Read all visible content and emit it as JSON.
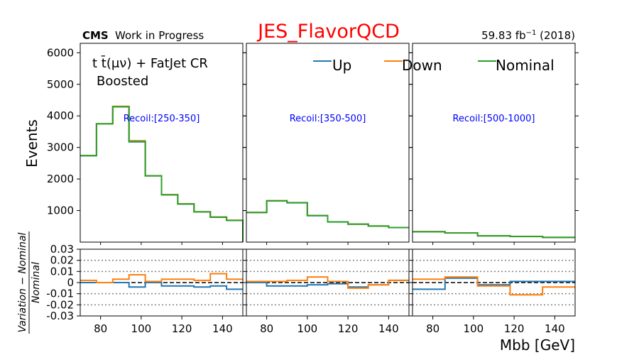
{
  "header": {
    "cms": "CMS",
    "wip": "Work in Progress",
    "title": "JES_FlavorQCD",
    "lumi_value": "59.83 fb",
    "lumi_exp": "−1",
    "lumi_year": " (2018)"
  },
  "annotation": {
    "region_line1": "t t̄(μν) + FatJet CR",
    "region_line2": "Boosted"
  },
  "axes": {
    "xlabel": "Mbb [GeV]",
    "ylabel_top": "Events",
    "ylabel_bottom_num": "Variation − Nominal",
    "ylabel_bottom_den": "Nominal"
  },
  "colors": {
    "up": "#1f77b4",
    "down": "#ff7f0e",
    "nominal": "#2ca02c",
    "title": "#ff0000",
    "recoil": "#0000ff"
  },
  "chart_data": {
    "type": "line",
    "legend": {
      "placement": "top",
      "entries": [
        "Up",
        "Down",
        "Nominal"
      ]
    },
    "top_ylim": [
      0,
      6300
    ],
    "top_yticks": [
      1000,
      2000,
      3000,
      4000,
      5000,
      6000
    ],
    "ratio_ylim": [
      -0.03,
      0.03
    ],
    "ratio_yticks": [
      0.03,
      0.02,
      0.01,
      0,
      -0.01,
      -0.02,
      -0.03
    ],
    "ratio_yticklabels": [
      "0.03",
      "0.02",
      "0.01",
      "0",
      "-0.01",
      "-0.02",
      "-0.03"
    ],
    "xlim": [
      70,
      150
    ],
    "xticks": [
      80,
      100,
      120,
      140
    ],
    "panels": [
      {
        "recoil": "Recoil:[250-350]",
        "edges": [
          70,
          78,
          86,
          94,
          102,
          110,
          118,
          126,
          134,
          142,
          150
        ],
        "nominal": [
          2740,
          3750,
          4290,
          3190,
          2100,
          1500,
          1210,
          960,
          790,
          690
        ],
        "up_var": [
          0.0,
          0.0,
          0.0,
          -0.004,
          0.0,
          -0.003,
          -0.003,
          -0.004,
          -0.003,
          -0.006
        ],
        "down_var": [
          0.002,
          0.0,
          0.003,
          0.007,
          0.001,
          0.003,
          0.003,
          0.002,
          0.008,
          0.003
        ]
      },
      {
        "recoil": "Recoil:[350-500]",
        "edges": [
          70,
          80,
          90,
          100,
          110,
          120,
          130,
          140,
          150
        ],
        "nominal": [
          940,
          1310,
          1250,
          840,
          640,
          570,
          510,
          460
        ],
        "up_var": [
          0.0,
          -0.003,
          -0.003,
          -0.002,
          -0.001,
          -0.004,
          -0.002,
          0.002
        ],
        "down_var": [
          0.001,
          0.001,
          0.002,
          0.005,
          0.001,
          -0.005,
          -0.002,
          0.002
        ]
      },
      {
        "recoil": "Recoil:[500-1000]",
        "edges": [
          70,
          86,
          102,
          118,
          134,
          150
        ],
        "nominal": [
          330,
          290,
          200,
          180,
          150
        ],
        "up_var": [
          -0.006,
          0.004,
          -0.002,
          0.001,
          0.001
        ],
        "down_var": [
          0.003,
          0.005,
          -0.003,
          -0.011,
          -0.004
        ]
      }
    ]
  }
}
